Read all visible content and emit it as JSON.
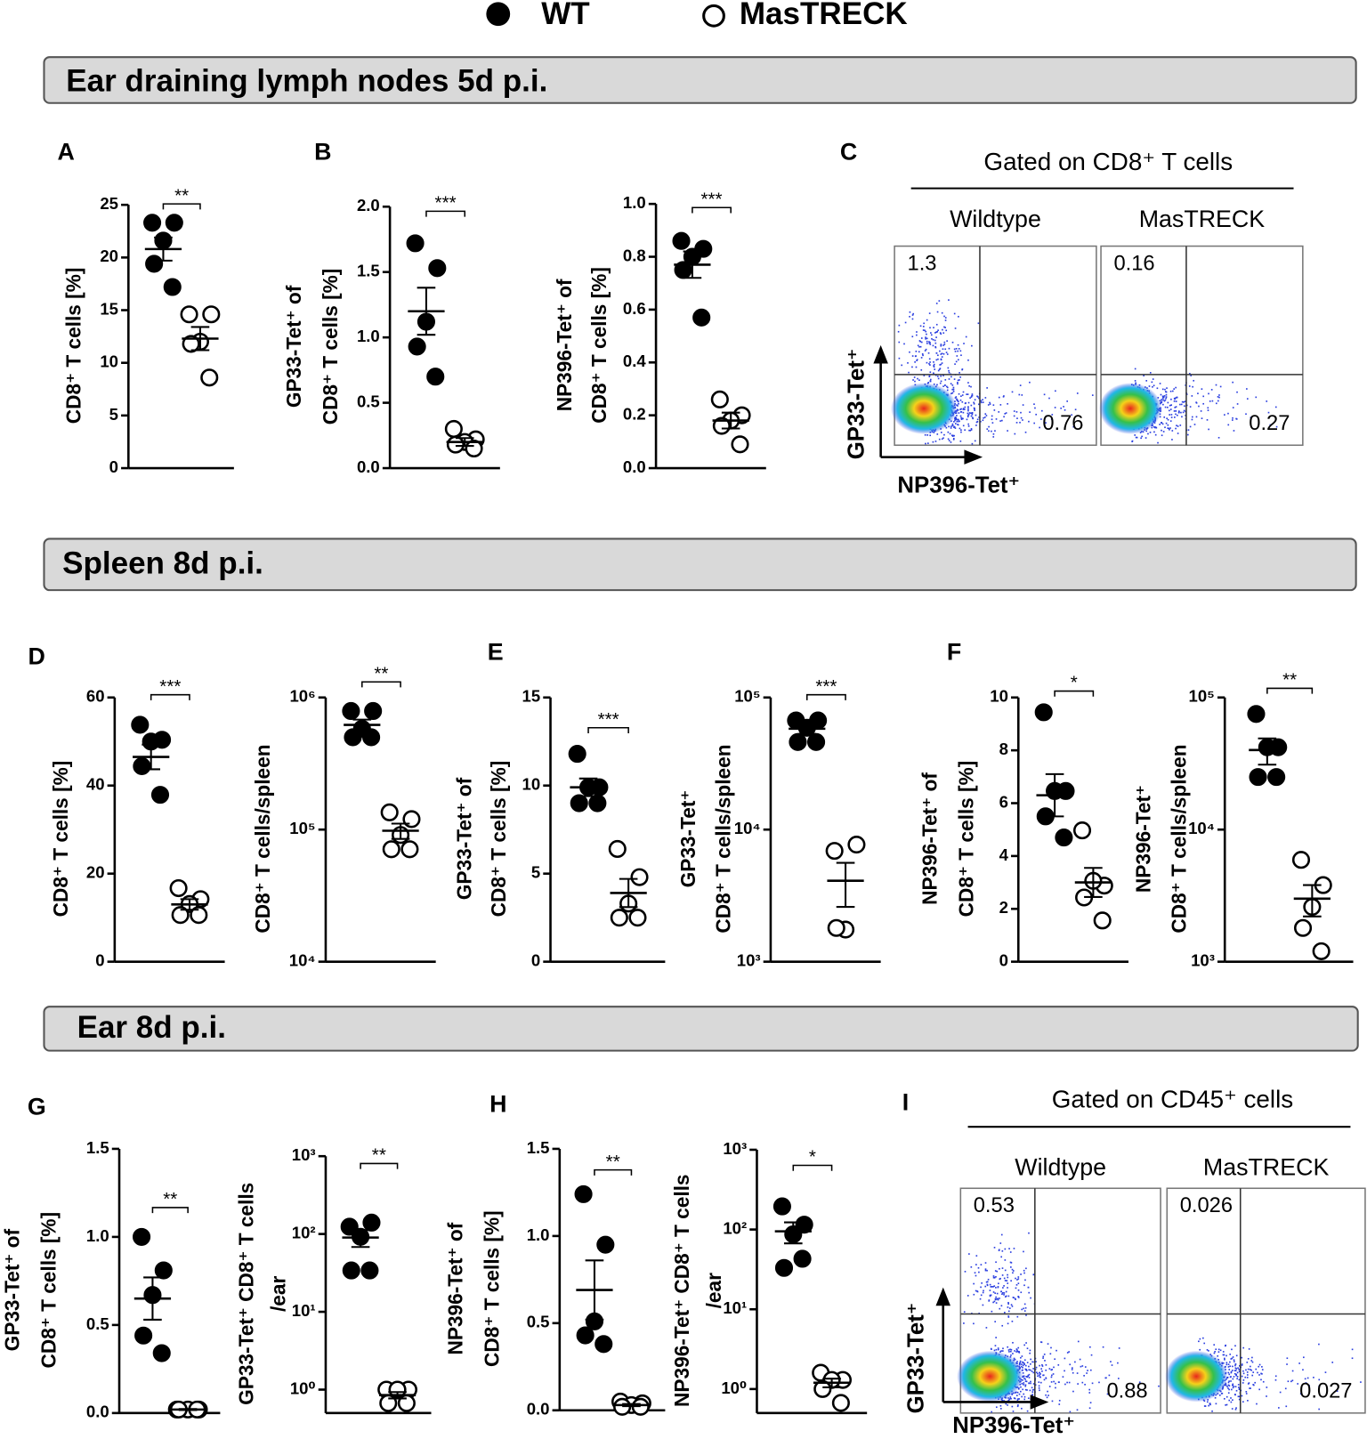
{
  "sections": [
    "Ear draining lymph nodes 5d p.i.",
    "Spleen 8d p.i.",
    "Ear 8d p.i."
  ],
  "panels": [
    "A",
    "B",
    "C",
    "D",
    "E",
    "F",
    "G",
    "H",
    "I"
  ],
  "chart_data": [
    {
      "type": "dot",
      "ylabel": [
        "CD8⁺ T cells [%]"
      ],
      "ylim": [
        0,
        25
      ],
      "yticks": [
        0,
        5,
        10,
        15,
        20,
        25
      ],
      "significance": "**",
      "series": [
        {
          "name": "WT",
          "marker": "filled",
          "values": [
            23.3,
            23.3,
            21.6,
            19.4,
            17.2
          ],
          "mean": 20.8,
          "sem": 1.1
        },
        {
          "name": "MasTRECK",
          "marker": "open",
          "values": [
            14.6,
            14.6,
            12.0,
            11.8,
            8.6
          ],
          "mean": 12.3,
          "sem": 1.1
        }
      ]
    },
    {
      "type": "dot",
      "ylabel": [
        "GP33-Tet⁺ of",
        "CD8⁺ T cells [%]"
      ],
      "ylim": [
        0,
        2
      ],
      "yticks": [
        {
          "value": 0,
          "label": "0.0"
        },
        0.5,
        {
          "value": 1,
          "label": "1.0"
        },
        1.5,
        {
          "value": 2,
          "label": "2.0"
        }
      ],
      "significance": "***",
      "series": [
        {
          "name": "WT",
          "marker": "filled",
          "values": [
            1.72,
            1.53,
            1.12,
            0.93,
            0.7
          ],
          "mean": 1.2,
          "sem": 0.18
        },
        {
          "name": "MasTRECK",
          "marker": "open",
          "values": [
            0.3,
            0.22,
            0.2,
            0.18,
            0.15
          ],
          "mean": 0.2,
          "sem": 0.03
        }
      ]
    },
    {
      "type": "dot",
      "ylabel": [
        "NP396-Tet⁺ of",
        "CD8⁺ T cells [%]"
      ],
      "ylim": [
        0,
        1
      ],
      "yticks": [
        {
          "value": 0,
          "label": "0.0"
        },
        0.2,
        0.4,
        0.6,
        0.8,
        {
          "value": 1,
          "label": "1.0"
        }
      ],
      "significance": "***",
      "series": [
        {
          "name": "WT",
          "marker": "filled",
          "values": [
            0.86,
            0.83,
            0.8,
            0.75,
            0.57
          ],
          "mean": 0.77,
          "sem": 0.05
        },
        {
          "name": "MasTRECK",
          "marker": "open",
          "values": [
            0.26,
            0.2,
            0.18,
            0.16,
            0.09
          ],
          "mean": 0.18,
          "sem": 0.03
        }
      ]
    },
    {
      "type": "flow",
      "title": "Gated on CD8⁺ T cells",
      "columns": [
        "Wildtype",
        "MasTRECK"
      ],
      "ylabel": "GP33-Tet⁺",
      "xlabel": "NP396-Tet⁺",
      "quadrants": [
        [
          1.3,
          0.76
        ],
        [
          0.16,
          0.27
        ]
      ]
    },
    {
      "type": "dot",
      "ylabel": [
        "CD8⁺ T cells [%]"
      ],
      "ylim": [
        0,
        60
      ],
      "yticks": [
        0,
        20,
        40,
        60
      ],
      "significance": "***",
      "series": [
        {
          "name": "WT",
          "marker": "filled",
          "values": [
            53.8,
            50.4,
            50.0,
            44.4,
            37.9
          ],
          "mean": 46.5,
          "sem": 2.8
        },
        {
          "name": "MasTRECK",
          "marker": "open",
          "values": [
            16.7,
            14.2,
            13.1,
            10.6,
            10.6
          ],
          "mean": 13.0,
          "sem": 1.2
        }
      ]
    },
    {
      "type": "dot",
      "log": true,
      "ylabel": [
        "CD8⁺ T cells/spleen"
      ],
      "ylim": [
        10000,
        1000000
      ],
      "yticks": [
        {
          "value": 10000,
          "label": "10⁴"
        },
        {
          "value": 100000,
          "label": "10⁵"
        },
        {
          "value": 1000000,
          "label": "10⁶"
        }
      ],
      "significance": "**",
      "series": [
        {
          "name": "WT",
          "marker": "filled",
          "values": [
            790000,
            790000,
            580000,
            500000,
            500000
          ],
          "mean": 620000,
          "sem": 60000
        },
        {
          "name": "MasTRECK",
          "marker": "open",
          "values": [
            135000,
            120000,
            91000,
            71000,
            71000
          ],
          "mean": 98000,
          "sem": 13000
        }
      ]
    },
    {
      "type": "dot",
      "ylabel": [
        "GP33-Tet⁺ of",
        "CD8⁺ T cells [%]"
      ],
      "ylim": [
        0,
        15
      ],
      "yticks": [
        0,
        5,
        10,
        15
      ],
      "significance": "***",
      "series": [
        {
          "name": "WT",
          "marker": "filled",
          "values": [
            11.8,
            9.9,
            9.9,
            9.0,
            9.0
          ],
          "mean": 9.9,
          "sem": 0.5
        },
        {
          "name": "MasTRECK",
          "marker": "open",
          "values": [
            6.4,
            4.8,
            3.3,
            2.5,
            2.5
          ],
          "mean": 3.9,
          "sem": 0.8
        }
      ]
    },
    {
      "type": "dot",
      "log": true,
      "ylabel": [
        "GP33-Tet⁺",
        "CD8⁺ T cells/spleen"
      ],
      "ylim": [
        1000,
        100000
      ],
      "yticks": [
        {
          "value": 1000,
          "label": "10³"
        },
        {
          "value": 10000,
          "label": "10⁴"
        },
        {
          "value": 100000,
          "label": "10⁵"
        }
      ],
      "significance": "***",
      "series": [
        {
          "name": "WT",
          "marker": "filled",
          "values": [
            67000,
            67000,
            59000,
            46000,
            46000
          ],
          "mean": 58000,
          "sem": 5000
        },
        {
          "name": "MasTRECK",
          "marker": "open",
          "values": [
            6900,
            7700,
            1750,
            1800
          ],
          "mean": 4100,
          "sem": 1500
        }
      ]
    },
    {
      "type": "dot",
      "ylabel": [
        "NP396-Tet⁺ of",
        "CD8⁺ T cells [%]"
      ],
      "ylim": [
        0,
        10
      ],
      "yticks": [
        0,
        2,
        4,
        6,
        8,
        10
      ],
      "significance": "*",
      "series": [
        {
          "name": "WT",
          "marker": "filled",
          "values": [
            9.44,
            6.46,
            6.46,
            5.5,
            4.7
          ],
          "mean": 6.3,
          "sem": 0.8
        },
        {
          "name": "MasTRECK",
          "marker": "open",
          "values": [
            4.97,
            2.88,
            3.06,
            2.43,
            1.56
          ],
          "mean": 3.0,
          "sem": 0.55
        }
      ]
    },
    {
      "type": "dot",
      "log": true,
      "ylabel": [
        "NP396-Tet⁺",
        "CD8⁺ T cells/spleen"
      ],
      "ylim": [
        1000,
        100000
      ],
      "yticks": [
        {
          "value": 1000,
          "label": "10³"
        },
        {
          "value": 10000,
          "label": "10⁴"
        },
        {
          "value": 100000,
          "label": "10⁵"
        }
      ],
      "significance": "**",
      "series": [
        {
          "name": "WT",
          "marker": "filled",
          "values": [
            75000,
            42000,
            42000,
            25000,
            25000
          ],
          "mean": 40000,
          "sem": 9000
        },
        {
          "name": "MasTRECK",
          "marker": "open",
          "values": [
            5900,
            3800,
            2600,
            1800,
            1200
          ],
          "mean": 3000,
          "sem": 800
        }
      ]
    },
    {
      "type": "dot",
      "ylabel": [
        "GP33-Tet⁺ of",
        "CD8⁺ T cells [%]"
      ],
      "ylim": [
        0,
        1.5
      ],
      "yticks": [
        {
          "value": 0,
          "label": "0.0"
        },
        0.5,
        {
          "value": 1,
          "label": "1.0"
        },
        1.5
      ],
      "significance": "**",
      "series": [
        {
          "name": "WT",
          "marker": "filled",
          "values": [
            1.0,
            0.81,
            0.67,
            0.44,
            0.34
          ],
          "mean": 0.65,
          "sem": 0.12
        },
        {
          "name": "MasTRECK",
          "marker": "open",
          "values": [
            0.02,
            0.02,
            0.02,
            0.02,
            0.02
          ],
          "mean": 0.02,
          "sem": 0.003
        }
      ]
    },
    {
      "type": "dot",
      "log": true,
      "ylabel": [
        "GP33-Tet⁺ CD8⁺ T cells",
        "/ear"
      ],
      "ylim": [
        0.5,
        1000
      ],
      "yticks": [
        {
          "value": 1,
          "label": "10⁰"
        },
        {
          "value": 10,
          "label": "10¹"
        },
        {
          "value": 100,
          "label": "10²"
        },
        {
          "value": 1000,
          "label": "10³"
        }
      ],
      "significance": "**",
      "series": [
        {
          "name": "WT",
          "marker": "filled",
          "values": [
            124,
            140,
            92,
            34,
            34
          ],
          "mean": 90,
          "sem": 22
        },
        {
          "name": "MasTRECK",
          "marker": "open",
          "values": [
            1.0,
            1.0,
            1.0,
            0.67,
            0.67
          ],
          "mean": 0.85,
          "sem": 0.08
        }
      ]
    },
    {
      "type": "dot",
      "ylabel": [
        "NP396-Tet⁺ of",
        "CD8⁺ T cells [%]"
      ],
      "ylim": [
        0,
        1.5
      ],
      "yticks": [
        {
          "value": 0,
          "label": "0.0"
        },
        0.5,
        {
          "value": 1,
          "label": "1.0"
        },
        1.5
      ],
      "significance": "**",
      "series": [
        {
          "name": "WT",
          "marker": "filled",
          "values": [
            1.24,
            0.95,
            0.51,
            0.43,
            0.38
          ],
          "mean": 0.69,
          "sem": 0.17
        },
        {
          "name": "MasTRECK",
          "marker": "open",
          "values": [
            0.05,
            0.04,
            0.03,
            0.02,
            0.02
          ],
          "mean": 0.03,
          "sem": 0.006
        }
      ]
    },
    {
      "type": "dot",
      "log": true,
      "ylabel": [
        "NP396-Tet⁺ CD8⁺ T cells",
        "/ear"
      ],
      "ylim": [
        0.5,
        1000
      ],
      "yticks": [
        {
          "value": 1,
          "label": "10⁰"
        },
        {
          "value": 10,
          "label": "10¹"
        },
        {
          "value": 100,
          "label": "10²"
        },
        {
          "value": 1000,
          "label": "10³"
        }
      ],
      "significance": "*",
      "series": [
        {
          "name": "WT",
          "marker": "filled",
          "values": [
            195,
            115,
            87,
            33,
            43
          ],
          "mean": 95,
          "sem": 28
        },
        {
          "name": "MasTRECK",
          "marker": "open",
          "values": [
            1.6,
            1.3,
            1.3,
            1.0,
            0.67
          ],
          "mean": 1.2,
          "sem": 0.15
        }
      ]
    },
    {
      "type": "flow",
      "title": "Gated on CD45⁺ cells",
      "columns": [
        "Wildtype",
        "MasTRECK"
      ],
      "ylabel": "GP33-Tet⁺",
      "xlabel": "NP396-Tet⁺",
      "quadrants": [
        [
          0.53,
          0.88
        ],
        [
          0.026,
          0.027
        ]
      ]
    }
  ]
}
